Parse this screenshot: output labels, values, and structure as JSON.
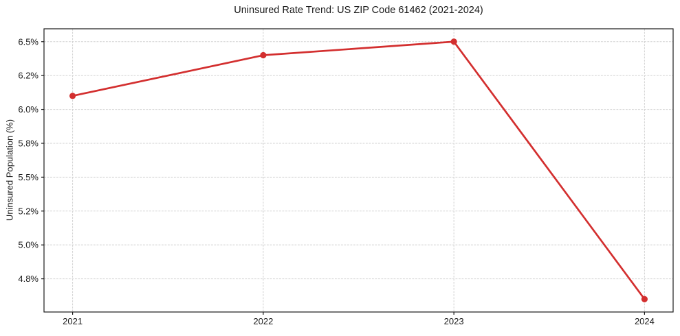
{
  "figure": {
    "background": "#ffffff"
  },
  "chart_data": {
    "type": "line",
    "title": "Uninsured Rate Trend: US ZIP Code 61462 (2021-2024)",
    "xlabel": "",
    "ylabel": "Uninsured Population (%)",
    "x": [
      2021,
      2022,
      2023,
      2024
    ],
    "values": [
      6.1,
      6.4,
      6.5,
      4.6
    ],
    "x_ticks": [
      {
        "value": 2021,
        "label": "2021"
      },
      {
        "value": 2022,
        "label": "2022"
      },
      {
        "value": 2023,
        "label": "2023"
      },
      {
        "value": 2024,
        "label": "2024"
      }
    ],
    "y_ticks": [
      {
        "value": 4.75,
        "label": "4.8%"
      },
      {
        "value": 5.0,
        "label": "5.0%"
      },
      {
        "value": 5.25,
        "label": "5.2%"
      },
      {
        "value": 5.5,
        "label": "5.5%"
      },
      {
        "value": 5.75,
        "label": "5.8%"
      },
      {
        "value": 6.0,
        "label": "6.0%"
      },
      {
        "value": 6.25,
        "label": "6.2%"
      },
      {
        "value": 6.5,
        "label": "6.5%"
      }
    ],
    "xlim": [
      2020.85,
      2024.15
    ],
    "ylim": [
      4.505,
      6.595
    ],
    "grid": true,
    "grid_style": "dashed",
    "legend": false,
    "colors": {
      "line": "#d32f2f",
      "marker": "#d32f2f",
      "grid": "#d2d2d2",
      "axis": "#1a1a1a",
      "text": "#1a1a1a",
      "background": "#ffffff"
    }
  }
}
